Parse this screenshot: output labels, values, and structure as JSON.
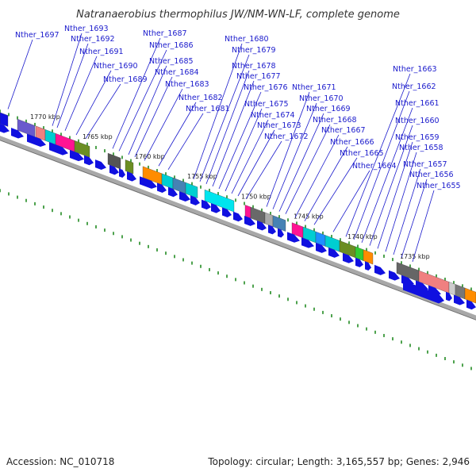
{
  "title": "Natranaerobius thermophilus JW/NM-WN-LF, complete genome",
  "footer": {
    "accession": "Accession: NC_010718",
    "topology": "Topology: circular; Length: 3,165,557 bp; Genes: 2,946"
  },
  "kbp_ticks": [
    "1770 kbp",
    "1765 kbp",
    "1760 kbp",
    "1755 kbp",
    "1750 kbp",
    "1745 kbp",
    "1740 kbp",
    "1735 kbp"
  ],
  "gene_labels": [
    "Nther_1697",
    "Nther_1693",
    "Nther_1692",
    "Nther_1691",
    "Nther_1690",
    "Nther_1689",
    "Nther_1687",
    "Nther_1686",
    "Nther_1685",
    "Nther_1684",
    "Nther_1683",
    "Nther_1682",
    "Nther_1681",
    "Nther_1680",
    "Nther_1679",
    "Nther_1678",
    "Nther_1677",
    "Nther_1676",
    "Nther_1675",
    "Nther_1674",
    "Nther_1673",
    "Nther_1672",
    "Nther_1671",
    "Nther_1670",
    "Nther_1669",
    "Nther_1668",
    "Nther_1667",
    "Nther_1666",
    "Nther_1665",
    "Nther_1664",
    "Nther_1663",
    "Nther_1662",
    "Nther_1661",
    "Nther_1660",
    "Nther_1659",
    "Nther_1658",
    "Nther_1657",
    "Nther_1656",
    "Nther_1655"
  ],
  "colors": {
    "label": "#1a1acc",
    "cds_arrow": "#1010e0",
    "backbone": "#a8a8a8",
    "tick_dots": "#228b22",
    "feature_palette": [
      "#6a5acd",
      "#ff69b4",
      "#00ced1",
      "#6b8e23",
      "#696969",
      "#ff8c00",
      "#4682b4",
      "#32cd32",
      "#f08080",
      "#e75480"
    ]
  }
}
